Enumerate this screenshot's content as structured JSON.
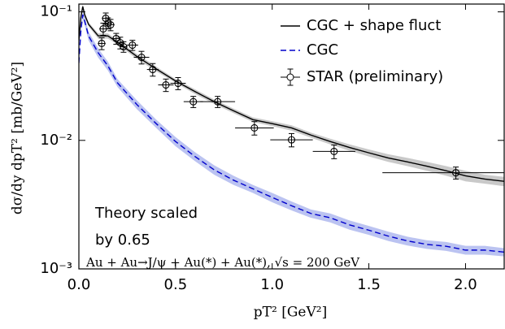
{
  "chart_data": {
    "type": "line",
    "y_label": "dσ/dy dpT² [mb/GeV²]",
    "x_label": "pT² [GeV²]",
    "annotations": [
      "Theory scaled",
      "by 0.65",
      "Au + Au→J/ψ + Au(*) + Au(*), √s = 200 GeV"
    ],
    "log_y": true,
    "legend": "upper right",
    "xlim": [
      0,
      2.2
    ],
    "ylim": [
      0.001,
      0.115
    ],
    "xticks": [
      {
        "value": 0,
        "label": "0.0"
      },
      0.5,
      {
        "value": 1,
        "label": "1.0"
      },
      1.5,
      {
        "value": 2,
        "label": "2.0"
      }
    ],
    "yticks": [
      {
        "value": 0.001,
        "label": "10⁻³"
      },
      {
        "value": 0.01,
        "label": "10⁻²"
      },
      {
        "value": 0.1,
        "label": "10⁻¹"
      }
    ],
    "x": [
      0,
      0.01,
      0.02,
      0.03,
      0.05,
      0.1,
      0.15,
      0.2,
      0.3,
      0.4,
      0.5,
      0.6,
      0.7,
      0.8,
      0.9,
      1.0,
      1.1,
      1.2,
      1.3,
      1.4,
      1.5,
      1.6,
      1.7,
      1.8,
      1.9,
      2.0,
      2.1,
      2.2
    ],
    "series": [
      {
        "name": "CGC + shape fluct",
        "color": "#000000",
        "band_color": "#bbbbbb",
        "dash": "solid",
        "values": [
          0.06,
          0.09,
          0.11,
          0.095,
          0.08,
          0.065,
          0.065,
          0.058,
          0.045,
          0.036,
          0.029,
          0.024,
          0.02,
          0.017,
          0.0145,
          0.0135,
          0.0125,
          0.011,
          0.0098,
          0.0088,
          0.008,
          0.0073,
          0.0068,
          0.0063,
          0.0058,
          0.0053,
          0.005,
          0.0048
        ],
        "band": [
          0.003,
          0.005,
          0.005,
          0.004,
          0.003,
          0.003,
          0.003,
          0.002,
          0.002,
          0.0015,
          0.001,
          0.001,
          0.0008,
          0.0007,
          0.0006,
          0.0006,
          0.0006,
          0.0005,
          0.0005,
          0.0005,
          0.0005,
          0.0005,
          0.0005,
          0.0005,
          0.0005,
          0.0005,
          0.0004,
          0.0004
        ]
      },
      {
        "name": "CGC",
        "color": "#0000cc",
        "band_color": "#aab4ee",
        "dash": "dashed",
        "values": [
          0.04,
          0.07,
          0.095,
          0.085,
          0.065,
          0.048,
          0.038,
          0.028,
          0.019,
          0.0135,
          0.0098,
          0.0075,
          0.0059,
          0.0049,
          0.0042,
          0.0036,
          0.0031,
          0.0027,
          0.0025,
          0.0022,
          0.002,
          0.0018,
          0.00165,
          0.00155,
          0.0015,
          0.0014,
          0.0014,
          0.00135
        ],
        "band": [
          0.004,
          0.006,
          0.007,
          0.006,
          0.005,
          0.004,
          0.003,
          0.002,
          0.0015,
          0.001,
          0.0008,
          0.0006,
          0.0005,
          0.0004,
          0.0003,
          0.0003,
          0.00025,
          0.0002,
          0.0002,
          0.00018,
          0.00016,
          0.00015,
          0.00013,
          0.00012,
          0.00012,
          0.00011,
          0.00011,
          0.0001
        ]
      }
    ],
    "points": {
      "name": "STAR (preliminary)",
      "color": "#000000",
      "x": [
        0.118,
        0.126,
        0.139,
        0.151,
        0.164,
        0.193,
        0.214,
        0.231,
        0.277,
        0.324,
        0.382,
        0.45,
        0.513,
        0.592,
        0.718,
        0.908,
        1.1,
        1.32,
        1.95
      ],
      "values": [
        0.0568,
        0.0737,
        0.089,
        0.0817,
        0.0793,
        0.062,
        0.0575,
        0.0535,
        0.0551,
        0.0443,
        0.0356,
        0.027,
        0.0278,
        0.02,
        0.02,
        0.0125,
        0.0101,
        0.0082,
        0.0056
      ],
      "xerr": [
        0.02,
        0.02,
        0.02,
        0.02,
        0.02,
        0.02,
        0.02,
        0.02,
        0.03,
        0.04,
        0.03,
        0.04,
        0.04,
        0.05,
        0.09,
        0.1,
        0.11,
        0.11,
        0.38
      ],
      "yerr": [
        0.006,
        0.008,
        0.009,
        0.008,
        0.008,
        0.006,
        0.006,
        0.005,
        0.005,
        0.005,
        0.004,
        0.003,
        0.003,
        0.002,
        0.002,
        0.0015,
        0.0012,
        0.001,
        0.0006
      ]
    }
  }
}
